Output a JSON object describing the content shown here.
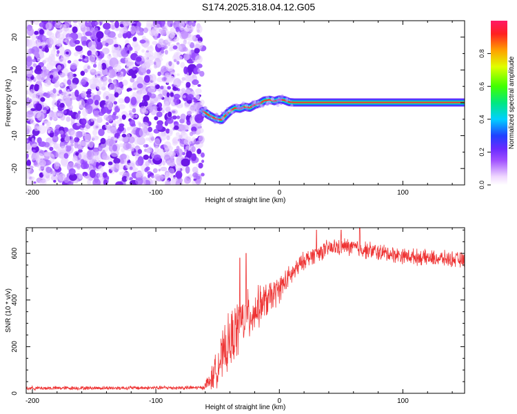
{
  "title": "S174.2025.318.04.12.G05",
  "colors": {
    "trace": "#ee3333",
    "frame": "#000000",
    "background": "#ffffff"
  },
  "chart_data": [
    {
      "type": "heatmap",
      "id": "spectrogram",
      "xlabel": "Height of straight line (km)",
      "ylabel": "Frequency (Hz)",
      "xlim": [
        -205,
        150
      ],
      "ylim": [
        -25,
        25
      ],
      "xticks": [
        -200,
        -100,
        0,
        100
      ],
      "xtick_labels": [
        "-200",
        "-100",
        "0",
        "100"
      ],
      "yticks": [
        -20,
        -10,
        0,
        10,
        20
      ],
      "ytick_labels": [
        "-20",
        "-10",
        "0",
        "10",
        "20"
      ],
      "noise_region_x": [
        -205,
        -62
      ],
      "signal_track": {
        "x": [
          -62,
          -57,
          -52,
          -47,
          -44,
          -40,
          -36,
          -32,
          -28,
          -24,
          -20,
          -16,
          -12,
          -8,
          -4,
          0,
          4,
          8,
          12,
          150
        ],
        "hz": [
          -2.5,
          -3.8,
          -4.8,
          -5.2,
          -4.0,
          -2.5,
          -1.6,
          -1.8,
          -1.2,
          -1.5,
          -0.6,
          -0.2,
          0.7,
          0.9,
          0.5,
          1.0,
          0.8,
          0.2,
          0.1,
          0.1
        ]
      },
      "colorbar": {
        "label": "Normalized spectral amplitude",
        "range": [
          0.0,
          1.0
        ],
        "ticks": [
          0.0,
          0.2,
          0.4,
          0.6,
          0.8
        ],
        "tick_labels": [
          "0.0",
          "0.2",
          "0.4",
          "0.6",
          "0.8"
        ]
      }
    },
    {
      "type": "line",
      "id": "snr",
      "xlabel": "Height of straight line (km)",
      "ylabel": "SNR (10 * v/v)",
      "xlim": [
        -205,
        150
      ],
      "ylim": [
        0,
        710
      ],
      "xticks": [
        -200,
        -100,
        0,
        100
      ],
      "xtick_labels": [
        "-200",
        "-100",
        "0",
        "100"
      ],
      "yticks": [
        0,
        200,
        400,
        600
      ],
      "ytick_labels": [
        "0",
        "200",
        "400",
        "600"
      ],
      "envelope": {
        "x": [
          -205,
          -62,
          -55,
          -48,
          -40,
          -35,
          -30,
          -25,
          -20,
          -15,
          -10,
          -5,
          0,
          5,
          10,
          15,
          20,
          30,
          40,
          50,
          60,
          70,
          80,
          100,
          120,
          140,
          150
        ],
        "mean": [
          22,
          24,
          60,
          140,
          220,
          270,
          310,
          330,
          350,
          380,
          400,
          420,
          450,
          480,
          510,
          540,
          570,
          600,
          620,
          630,
          625,
          615,
          605,
          590,
          580,
          575,
          570
        ],
        "spread": [
          10,
          10,
          60,
          110,
          150,
          150,
          140,
          130,
          110,
          100,
          90,
          80,
          70,
          60,
          55,
          50,
          45,
          45,
          45,
          45,
          45,
          45,
          45,
          40,
          40,
          40,
          40
        ]
      },
      "peaks": [
        {
          "x": -27,
          "y": 600
        },
        {
          "x": -32,
          "y": 580
        },
        {
          "x": 30,
          "y": 700
        },
        {
          "x": 50,
          "y": 700
        },
        {
          "x": 65,
          "y": 710
        }
      ]
    }
  ]
}
